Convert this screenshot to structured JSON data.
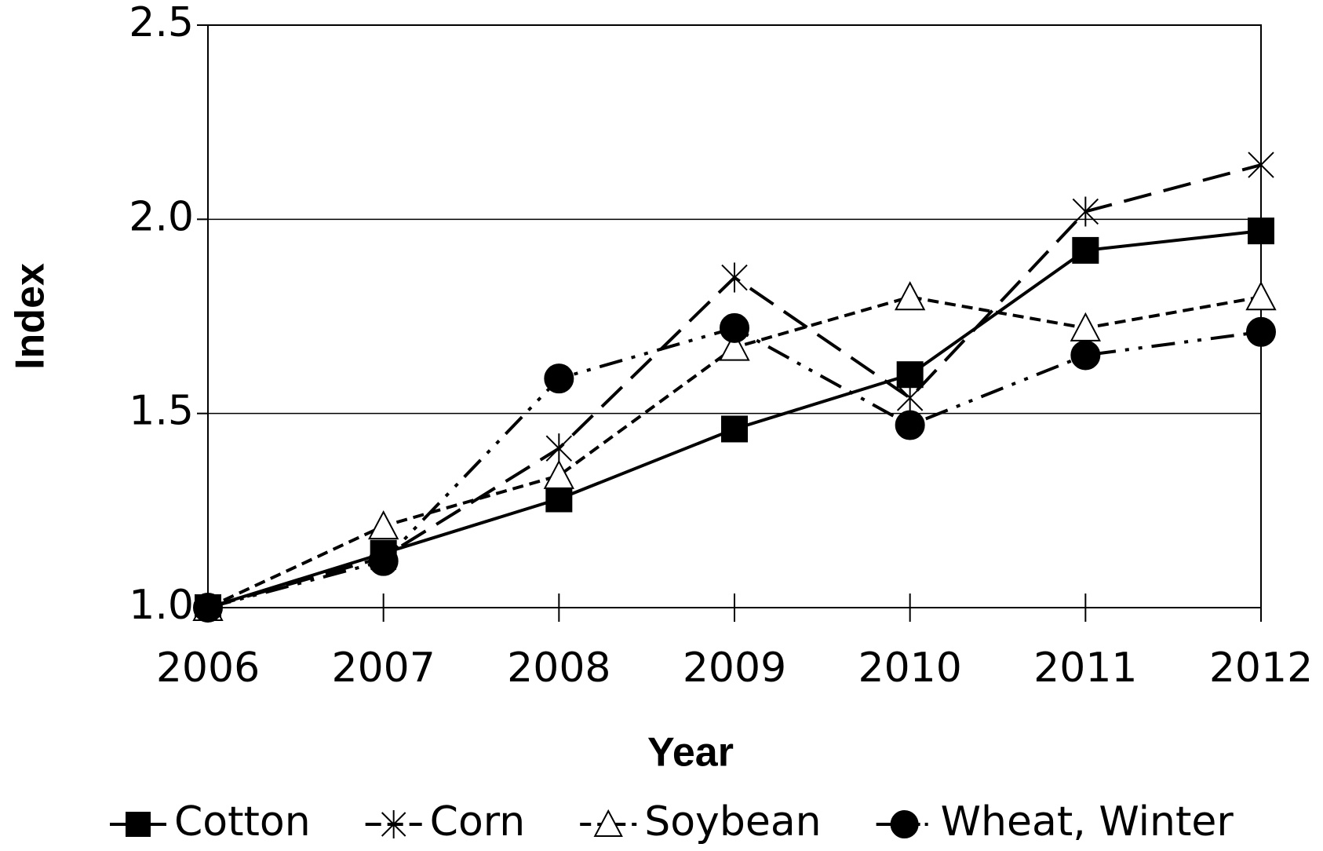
{
  "chart_data": {
    "type": "line",
    "x_label": "Year",
    "y_label": "Index",
    "x": [
      2006,
      2007,
      2008,
      2009,
      2010,
      2011,
      2012
    ],
    "xlim": [
      2006,
      2012
    ],
    "xticks": [
      2006,
      2007,
      2008,
      2009,
      2010,
      2011,
      2012
    ],
    "ylim": [
      1.0,
      2.5
    ],
    "yticks": [
      {
        "value": 1.0,
        "label": "1.0"
      },
      {
        "value": 1.5,
        "label": "1.5"
      },
      {
        "value": 2.0,
        "label": "2.0"
      },
      {
        "value": 2.5,
        "label": "2.5"
      }
    ],
    "grid": true,
    "legend": "bottom",
    "series": [
      {
        "name": "Cotton",
        "color": "#000000",
        "dash": "solid",
        "marker": "square",
        "values": [
          1.0,
          1.14,
          1.28,
          1.46,
          1.6,
          1.92,
          1.97
        ]
      },
      {
        "name": "Corn",
        "color": "#000000",
        "dash": "long",
        "marker": "star",
        "values": [
          1.0,
          1.13,
          1.41,
          1.85,
          1.54,
          2.02,
          2.14
        ]
      },
      {
        "name": "Soybean",
        "color": "#000000",
        "dash": "short",
        "marker": "triangle",
        "values": [
          1.0,
          1.21,
          1.34,
          1.67,
          1.8,
          1.72,
          1.8
        ]
      },
      {
        "name": "Wheat, Winter",
        "color": "#000000",
        "dash": "dashdotdot",
        "marker": "circle",
        "values": [
          1.0,
          1.12,
          1.59,
          1.72,
          1.47,
          1.65,
          1.71
        ]
      }
    ]
  }
}
